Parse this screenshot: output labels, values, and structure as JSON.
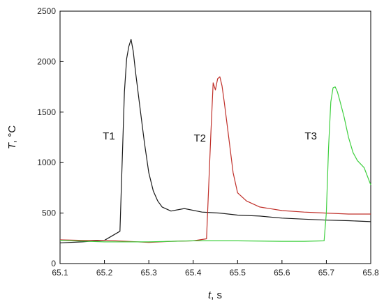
{
  "chart_data": {
    "type": "line",
    "xlabel_var": "t",
    "xlabel_unit": ", s",
    "ylabel_var": "T",
    "ylabel_unit": ", °C",
    "xlim": [
      65.1,
      65.8
    ],
    "ylim": [
      0,
      2500
    ],
    "x_ticks": [
      65.1,
      65.2,
      65.3,
      65.4,
      65.5,
      65.6,
      65.7,
      65.8
    ],
    "y_ticks": [
      0,
      500,
      1000,
      1500,
      2000,
      2500
    ],
    "grid": false,
    "annotations": [
      {
        "text": "T1",
        "x": 65.21,
        "y": 1230
      },
      {
        "text": "T2",
        "x": 65.415,
        "y": 1210
      },
      {
        "text": "T3",
        "x": 65.665,
        "y": 1230
      }
    ],
    "series": [
      {
        "color": "#1a1a1a",
        "x": [
          65.1,
          65.15,
          65.2,
          65.235,
          65.245,
          65.25,
          65.255,
          65.26,
          65.265,
          65.27,
          65.28,
          65.29,
          65.3,
          65.31,
          65.32,
          65.33,
          65.35,
          65.38,
          65.42,
          65.46,
          65.5,
          65.55,
          65.6,
          65.65,
          65.7,
          65.75,
          65.8
        ],
        "y": [
          205,
          215,
          230,
          320,
          1700,
          2030,
          2150,
          2220,
          2100,
          1900,
          1550,
          1200,
          900,
          720,
          620,
          560,
          520,
          545,
          510,
          500,
          480,
          470,
          450,
          440,
          430,
          425,
          415
        ]
      },
      {
        "color": "#c0302a",
        "x": [
          65.1,
          65.15,
          65.2,
          65.25,
          65.3,
          65.35,
          65.4,
          65.43,
          65.44,
          65.445,
          65.45,
          65.455,
          65.46,
          65.465,
          65.47,
          65.48,
          65.49,
          65.5,
          65.52,
          65.55,
          65.6,
          65.65,
          65.7,
          65.75,
          65.8
        ],
        "y": [
          235,
          230,
          230,
          220,
          210,
          220,
          225,
          245,
          1300,
          1790,
          1720,
          1830,
          1850,
          1760,
          1600,
          1250,
          900,
          700,
          620,
          560,
          525,
          510,
          500,
          490,
          490
        ]
      },
      {
        "color": "#3ecf3e",
        "x": [
          65.1,
          65.2,
          65.3,
          65.4,
          65.5,
          65.6,
          65.65,
          65.695,
          65.7,
          65.705,
          65.71,
          65.715,
          65.72,
          65.725,
          65.73,
          65.74,
          65.75,
          65.76,
          65.77,
          65.785,
          65.8
        ],
        "y": [
          230,
          215,
          215,
          225,
          225,
          220,
          220,
          225,
          500,
          1150,
          1600,
          1740,
          1750,
          1700,
          1620,
          1450,
          1250,
          1100,
          1020,
          950,
          780
        ]
      }
    ]
  }
}
